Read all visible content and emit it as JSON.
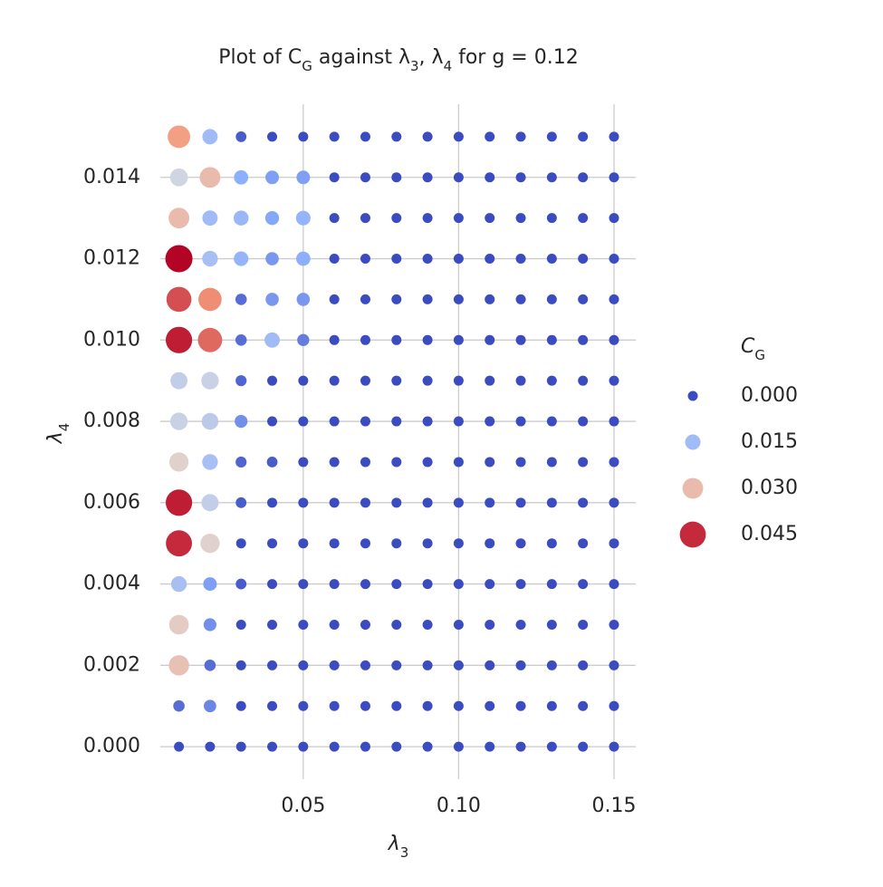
{
  "chart_data": {
    "type": "scatter",
    "title": "Plot of C_G against λ_3, λ_4 for g = 0.12",
    "xlabel": "λ_3",
    "ylabel": "λ_4",
    "x": [
      0.01,
      0.02,
      0.03,
      0.04,
      0.05,
      0.06,
      0.07,
      0.08,
      0.09,
      0.1,
      0.11,
      0.12,
      0.13,
      0.14,
      0.15
    ],
    "y": [
      0,
      0.001,
      0.002,
      0.003,
      0.004,
      0.005,
      0.006,
      0.007,
      0.008,
      0.009,
      0.01,
      0.011,
      0.012,
      0.013,
      0.014,
      0.015
    ],
    "values": [
      [
        0,
        0,
        0,
        0,
        0,
        0,
        0,
        0,
        0,
        0,
        0,
        0,
        0,
        0,
        0
      ],
      [
        0.004,
        0.007,
        0,
        0,
        0,
        0,
        0,
        0,
        0,
        0,
        0,
        0,
        0,
        0,
        0
      ],
      [
        0.029,
        0.004,
        0,
        0,
        0,
        0,
        0,
        0,
        0,
        0,
        0,
        0,
        0,
        0,
        0
      ],
      [
        0.027,
        0.008,
        0,
        0,
        0,
        0,
        0,
        0,
        0,
        0,
        0,
        0,
        0,
        0,
        0
      ],
      [
        0.016,
        0.01,
        0.002,
        0,
        0,
        0,
        0,
        0,
        0,
        0,
        0,
        0,
        0,
        0,
        0
      ],
      [
        0.045,
        0.026,
        0,
        0,
        0,
        0,
        0,
        0,
        0,
        0,
        0,
        0,
        0,
        0,
        0
      ],
      [
        0.046,
        0.02,
        0.002,
        0,
        0,
        0,
        0,
        0,
        0,
        0,
        0,
        0,
        0,
        0,
        0
      ],
      [
        0.026,
        0.016,
        0.003,
        0.002,
        0,
        0,
        0,
        0,
        0,
        0,
        0,
        0,
        0,
        0,
        0
      ],
      [
        0.021,
        0.019,
        0.008,
        0,
        0,
        0,
        0,
        0,
        0,
        0,
        0,
        0,
        0,
        0,
        0
      ],
      [
        0.02,
        0.021,
        0.003,
        0,
        0,
        0,
        0,
        0,
        0,
        0,
        0,
        0,
        0,
        0,
        0
      ],
      [
        0.046,
        0.04,
        0.004,
        0.015,
        0.006,
        0,
        0,
        0,
        0,
        0,
        0,
        0,
        0,
        0,
        0
      ],
      [
        0.042,
        0.037,
        0.004,
        0.009,
        0.009,
        0,
        0,
        0,
        0,
        0,
        0,
        0,
        0,
        0,
        0
      ],
      [
        0.048,
        0.016,
        0.013,
        0.009,
        0.012,
        0,
        0,
        0,
        0,
        0,
        0,
        0,
        0,
        0,
        0
      ],
      [
        0.03,
        0.015,
        0.014,
        0.011,
        0.013,
        0,
        0,
        0,
        0,
        0,
        0,
        0,
        0,
        0,
        0
      ],
      [
        0.022,
        0.03,
        0.012,
        0.01,
        0.01,
        0,
        0,
        0,
        0,
        0,
        0,
        0,
        0,
        0,
        0
      ],
      [
        0.035,
        0.015,
        0.002,
        0,
        0,
        0,
        0,
        0,
        0,
        0,
        0,
        0,
        0,
        0,
        0
      ]
    ],
    "colormap": "coolwarm",
    "clim": [
      0,
      0.048
    ],
    "xlim": [
      0.004,
      0.157
    ],
    "ylim": [
      -0.0008,
      0.0158
    ],
    "xticks": [
      0.05,
      {
        "value": 0.1,
        "label": "0.10"
      },
      0.15
    ],
    "yticks": [
      {
        "value": 0,
        "label": "0.000"
      },
      {
        "value": 0.002,
        "label": "0.002"
      },
      {
        "value": 0.004,
        "label": "0.004"
      },
      {
        "value": 0.006,
        "label": "0.006"
      },
      {
        "value": 0.008,
        "label": "0.008"
      },
      {
        "value": 0.01,
        "label": "0.010"
      },
      {
        "value": 0.012,
        "label": "0.012"
      },
      {
        "value": 0.014,
        "label": "0.014"
      }
    ],
    "grid": true,
    "legend": {
      "title": "C_G",
      "position": "right",
      "entries": [
        {
          "value": 0,
          "label": "0.000"
        },
        {
          "value": 0.015,
          "label": "0.015"
        },
        {
          "value": 0.03,
          "label": "0.030"
        },
        {
          "value": 0.045,
          "label": "0.045"
        }
      ]
    }
  }
}
